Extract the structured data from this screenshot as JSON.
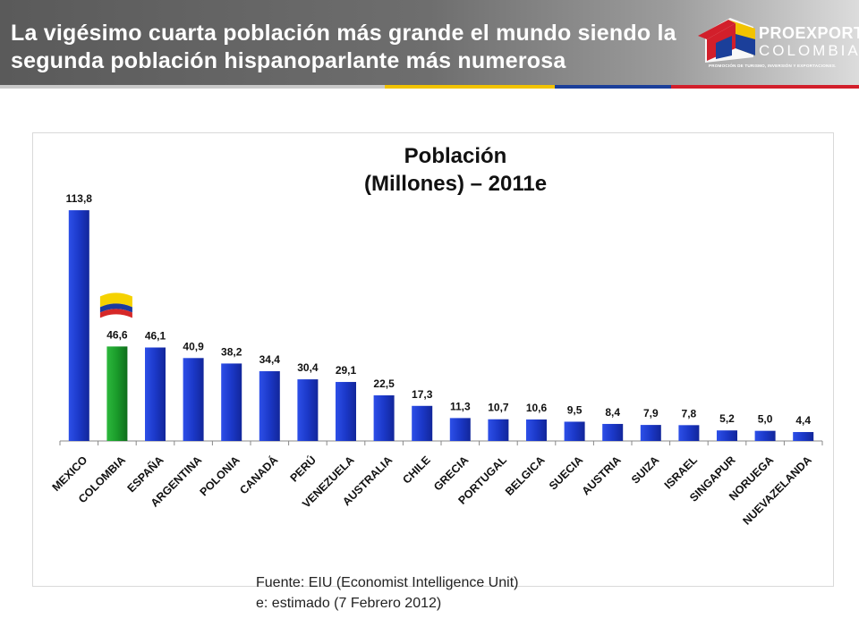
{
  "header": {
    "title": "La vigésimo cuarta población más grande el mundo siendo la segunda población hispanoparlante más numerosa"
  },
  "logo": {
    "name": "PROEXPORT",
    "sub": "COLOMBIA",
    "tagline": "PROMOCIÓN DE TURISMO, INVERSIÓN Y EXPORTACIONES."
  },
  "source": {
    "line1": "Fuente: EIU (Economist Intelligence Unit)",
    "line2": "e: estimado (7 Febrero 2012)"
  },
  "colors": {
    "bar": "#1f3fd6",
    "highlight": "#1a9a2a",
    "flag_yellow": "#f5d200",
    "flag_blue": "#1b3a9e",
    "flag_red": "#d62828"
  },
  "chart_data": {
    "type": "bar",
    "title": "Población",
    "subtitle": "(Millones) – 2011e",
    "categories": [
      "MEXICO",
      "COLOMBIA",
      "ESPAÑA",
      "ARGENTINA",
      "POLONIA",
      "CANADÁ",
      "PERÚ",
      "VENEZUELA",
      "AUSTRALIA",
      "CHILE",
      "GRECIA",
      "PORTUGAL",
      "BELGICA",
      "SUECIA",
      "AUSTRIA",
      "SUIZA",
      "ISRAEL",
      "SINGAPUR",
      "NORUEGA",
      "NUEVAZELANDA"
    ],
    "values": [
      113.8,
      46.6,
      46.1,
      40.9,
      38.2,
      34.4,
      30.4,
      29.1,
      22.5,
      17.3,
      11.3,
      10.7,
      10.6,
      9.5,
      8.4,
      7.9,
      7.8,
      5.2,
      5.0,
      4.4
    ],
    "labels": [
      "113,8",
      "46,6",
      "46,1",
      "40,9",
      "38,2",
      "34,4",
      "30,4",
      "29,1",
      "22,5",
      "17,3",
      "11,3",
      "10,7",
      "10,6",
      "9,5",
      "8,4",
      "7,9",
      "7,8",
      "5,2",
      "5,0",
      "4,4"
    ],
    "highlight_category": "COLOMBIA",
    "flag_icon": "colombia-flag-icon",
    "ylim": [
      0,
      120
    ],
    "grid": false,
    "legend": "none"
  }
}
